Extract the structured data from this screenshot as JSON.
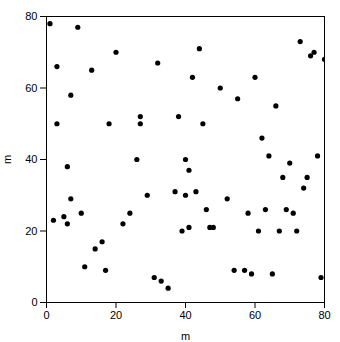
{
  "chart_data": {
    "type": "scatter",
    "x": [
      1,
      9,
      3,
      13,
      20,
      7,
      3,
      6,
      7,
      11,
      17,
      27,
      26,
      32,
      40,
      38,
      40,
      41,
      42,
      44,
      46,
      47,
      50,
      41,
      55,
      58,
      60,
      63,
      61,
      65,
      66,
      68,
      70,
      71,
      72,
      74,
      76,
      79,
      2,
      5,
      6,
      10,
      14,
      16,
      18,
      22,
      24,
      27,
      29,
      31,
      33,
      35,
      37,
      39,
      43,
      45,
      48,
      52,
      54,
      57,
      59,
      62,
      64,
      67,
      69,
      73,
      75,
      77,
      78,
      80
    ],
    "y": [
      78,
      77,
      66,
      65,
      70,
      58,
      50,
      38,
      29,
      10,
      9,
      52,
      40,
      67,
      40,
      52,
      30,
      21,
      63,
      71,
      26,
      21,
      60,
      37,
      57,
      25,
      63,
      26,
      20,
      8,
      55,
      35,
      39,
      25,
      20,
      32,
      69,
      7,
      23,
      24,
      22,
      25,
      15,
      17,
      50,
      22,
      25,
      50,
      30,
      7,
      6,
      4,
      31,
      20,
      31,
      50,
      21,
      29,
      9,
      9,
      8,
      46,
      41,
      20,
      26,
      73,
      35,
      70,
      41,
      68
    ],
    "xlabel": "m",
    "ylabel": "m",
    "xlim": [
      0,
      80
    ],
    "ylim": [
      0,
      80
    ],
    "xticks": [
      0,
      20,
      40,
      60,
      80
    ],
    "yticks": [
      0,
      20,
      40,
      60,
      80
    ],
    "color": "#000000",
    "grid": false
  }
}
